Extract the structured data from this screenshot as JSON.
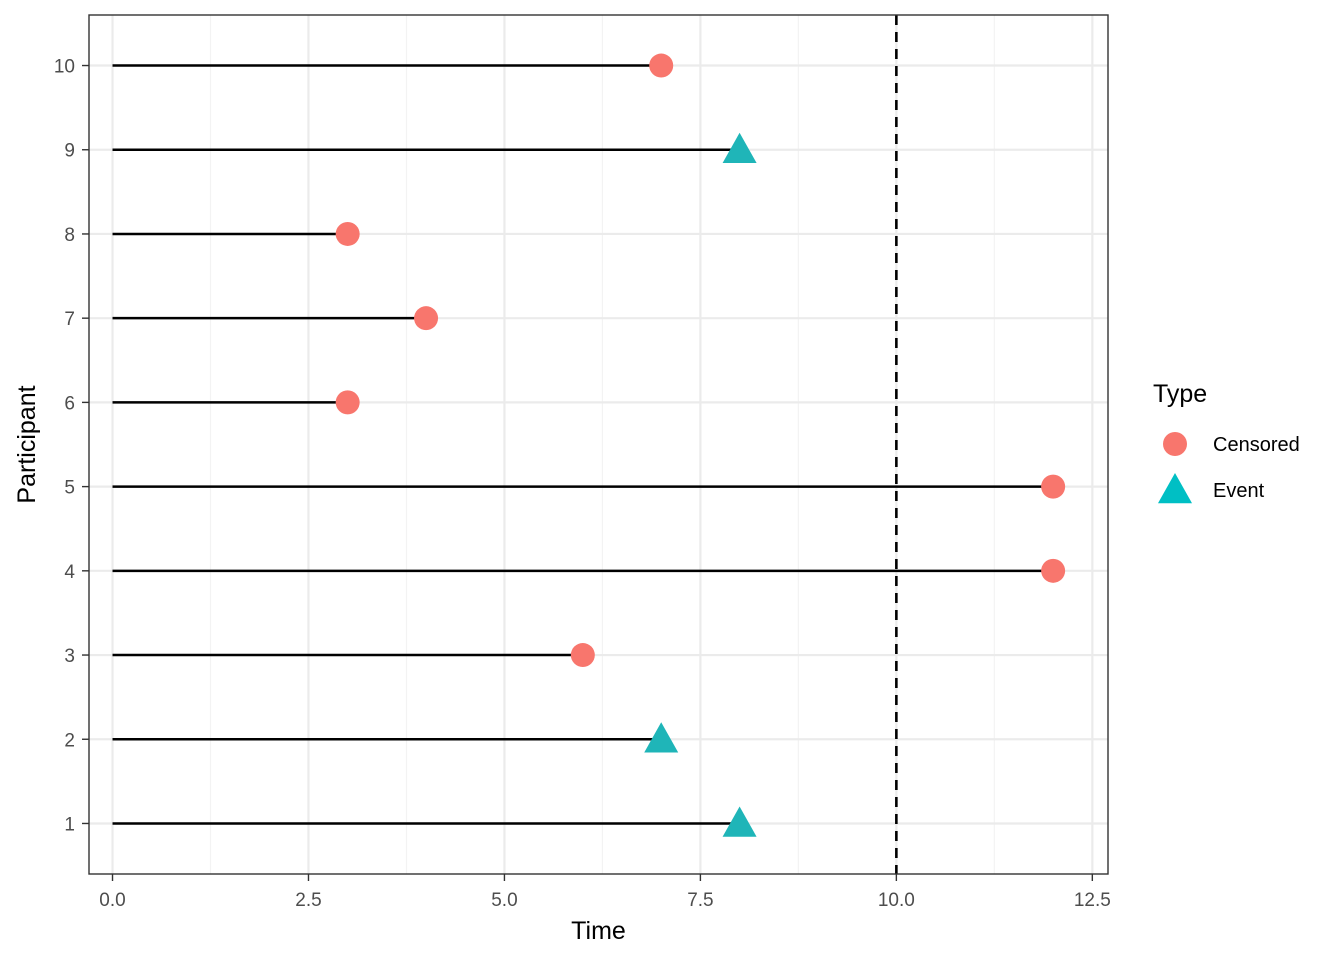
{
  "chart_data": {
    "type": "scatter",
    "subtype": "swimmer-lollipop",
    "title": "",
    "xlabel": "Time",
    "ylabel": "Participant",
    "xlim": [
      -0.3,
      12.7
    ],
    "ylim": [
      0.4,
      10.6
    ],
    "x_ticks": [
      0.0,
      2.5,
      5.0,
      7.5,
      10.0,
      12.5
    ],
    "x_tick_labels": [
      "0.0",
      "2.5",
      "5.0",
      "7.5",
      "10.0",
      "12.5"
    ],
    "y_ticks": [
      1,
      2,
      3,
      4,
      5,
      6,
      7,
      8,
      9,
      10
    ],
    "y_tick_labels": [
      "1",
      "2",
      "3",
      "4",
      "5",
      "6",
      "7",
      "8",
      "9",
      "10"
    ],
    "grid": true,
    "reference_line": {
      "x": 10,
      "style": "dashed",
      "color": "#000000"
    },
    "segment_start": 0,
    "participants": [
      {
        "participant": 1,
        "time": 8,
        "type": "Event"
      },
      {
        "participant": 2,
        "time": 7,
        "type": "Event"
      },
      {
        "participant": 3,
        "time": 6,
        "type": "Censored"
      },
      {
        "participant": 4,
        "time": 12,
        "type": "Censored"
      },
      {
        "participant": 5,
        "time": 12,
        "type": "Censored"
      },
      {
        "participant": 6,
        "time": 3,
        "type": "Censored"
      },
      {
        "participant": 7,
        "time": 4,
        "type": "Censored"
      },
      {
        "participant": 8,
        "time": 3,
        "type": "Censored"
      },
      {
        "participant": 9,
        "time": 8,
        "type": "Event"
      },
      {
        "participant": 10,
        "time": 7,
        "type": "Censored"
      }
    ],
    "legend": {
      "title": "Type",
      "placement": "right",
      "entries": [
        {
          "label": "Censored",
          "shape": "circle",
          "color": "#F8766D"
        },
        {
          "label": "Event",
          "shape": "triangle",
          "color": "#00BFC4"
        }
      ]
    },
    "colors": {
      "Censored": "#F8766D",
      "Event": "#1FB5B8",
      "segment": "#000000",
      "grid_major": "#ebebeb",
      "grid_minor": "#f3f3f3",
      "panel_border": "#333333"
    }
  }
}
